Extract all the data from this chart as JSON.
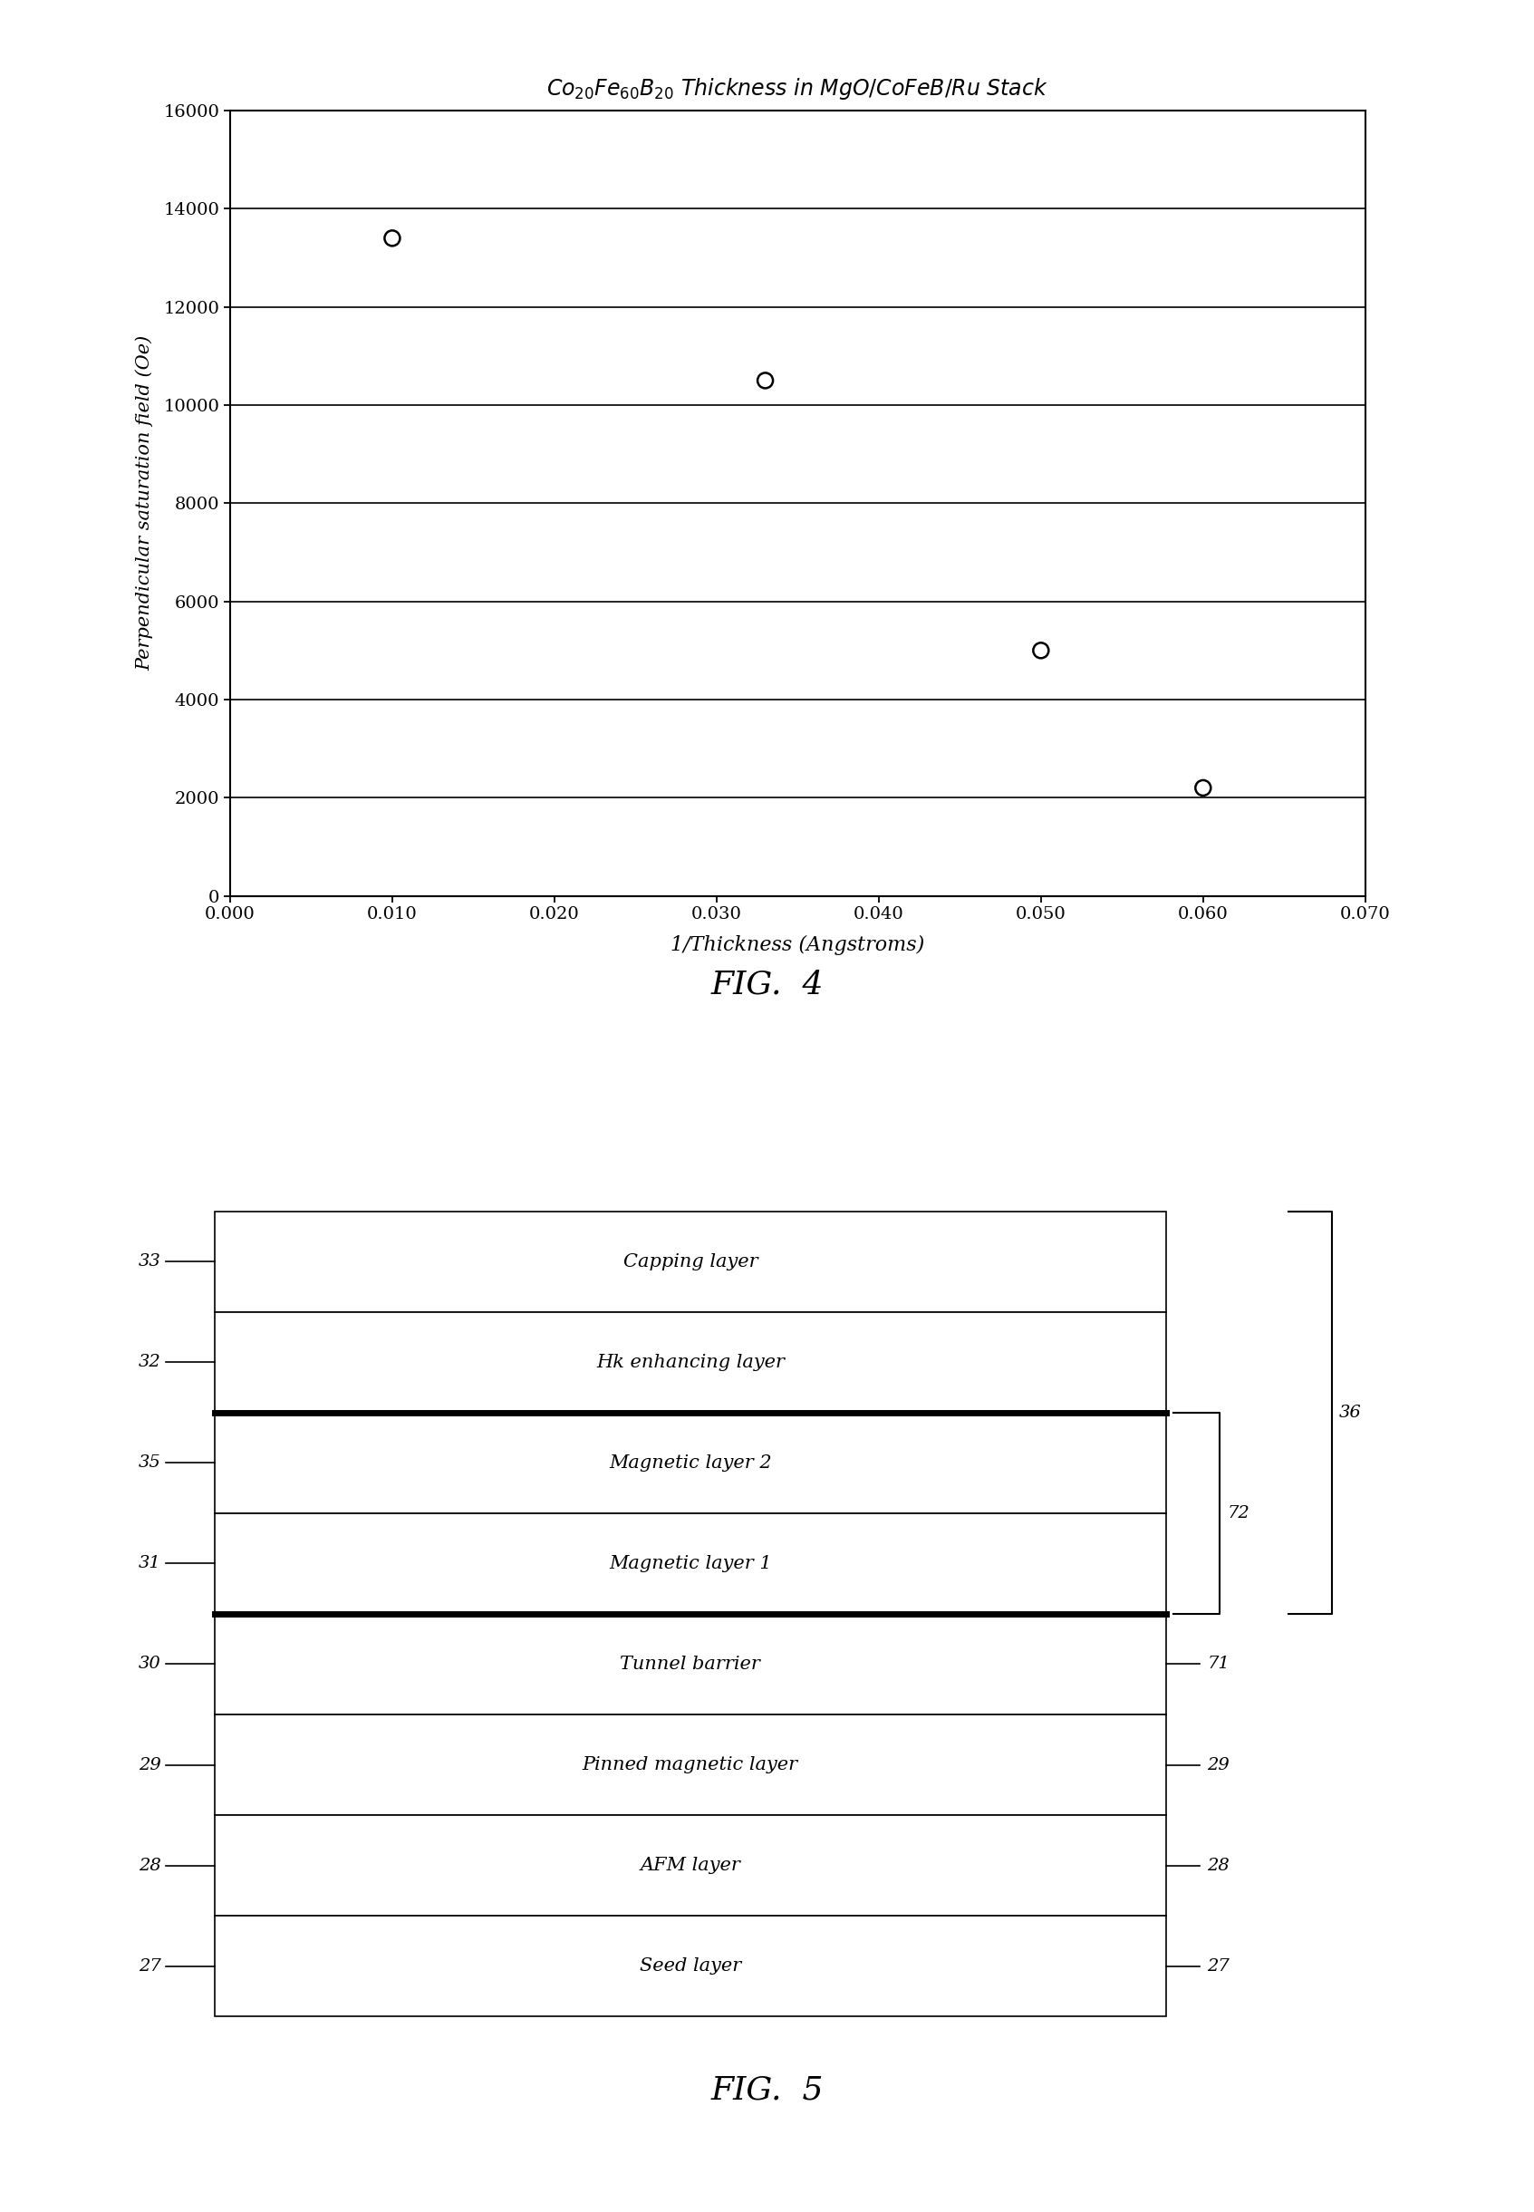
{
  "fig4": {
    "title": "Co₂₀Fe₆₀B₂₀ Thickness in MgO/CoFeB/Ru Stack",
    "xlabel": "1/Thickness (Angstroms)",
    "ylabel": "Perpendicular saturation field (Oe)",
    "x_data": [
      0.01,
      0.033,
      0.05,
      0.06
    ],
    "y_data": [
      13400,
      10500,
      5000,
      2200
    ],
    "xlim": [
      0.0,
      0.07
    ],
    "ylim": [
      0,
      16000
    ],
    "xticks": [
      0.0,
      0.01,
      0.02,
      0.03,
      0.04,
      0.05,
      0.06,
      0.07
    ],
    "yticks": [
      0,
      2000,
      4000,
      6000,
      8000,
      10000,
      12000,
      14000,
      16000
    ],
    "xtick_labels": [
      "0.000",
      "0.010",
      "0.020",
      "0.030",
      "0.040",
      "0.050",
      "0.060",
      "0.070"
    ],
    "ytick_labels": [
      "0",
      "2000",
      "4000",
      "6000",
      "8000",
      "10000",
      "12000",
      "14000",
      "16000"
    ]
  },
  "fig4_caption": "FIG.  4",
  "fig5_caption": "FIG.  5",
  "fig5": {
    "layers": [
      {
        "label": "Capping layer",
        "number": "33"
      },
      {
        "label": "Hk enhancing layer",
        "number": "32"
      },
      {
        "label": "Magnetic layer 2",
        "number": "35"
      },
      {
        "label": "Magnetic layer 1",
        "number": "31"
      },
      {
        "label": "Tunnel barrier",
        "number": "30"
      },
      {
        "label": "Pinned magnetic layer",
        "number": "29"
      },
      {
        "label": "AFM layer",
        "number": "28"
      },
      {
        "label": "Seed layer",
        "number": "27"
      }
    ],
    "bold_lines_after": [
      1,
      3
    ],
    "right_tick_labels": {
      "4": "71",
      "5": "29",
      "6": "28",
      "7": "27"
    },
    "bracket_72_layers": [
      2,
      3
    ],
    "bracket_72_label": "72",
    "bracket_36_layers": [
      0,
      3
    ],
    "bracket_36_label": "36"
  }
}
